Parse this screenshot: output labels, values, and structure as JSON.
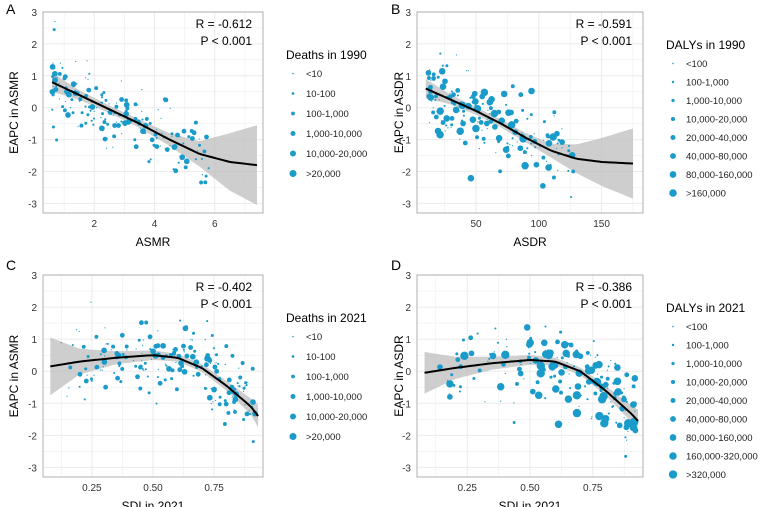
{
  "colors": {
    "point": "#1a9bc9",
    "curve": "#000000",
    "band": "#bdbdbd",
    "grid": "#ebebeb",
    "panel_border": "#9e9e9e"
  },
  "chart_data": [
    {
      "panel": "A",
      "type": "scatter",
      "xlabel": "ASMR",
      "ylabel": "EAPC in ASMR",
      "xlim": [
        0.3,
        7.6
      ],
      "ylim": [
        -3.3,
        3.0
      ],
      "xticks": [
        "2",
        "4",
        "6"
      ],
      "yticks": [
        "-3",
        "-2",
        "-1",
        "0",
        "1",
        "2",
        "3"
      ],
      "xtick_values": [
        2,
        4,
        6
      ],
      "ytick_values": [
        -3,
        -2,
        -1,
        0,
        1,
        2,
        3
      ],
      "annotation": {
        "r": "R = -0.612",
        "p": "P < 0.001"
      },
      "legend": {
        "title": "Deaths in 1990",
        "entries": [
          "<10",
          "10-100",
          "100-1,000",
          "1,000-10,000",
          "10,000-20,000",
          ">20,000"
        ]
      },
      "trend": {
        "x": [
          0.6,
          1.5,
          2.5,
          3.5,
          4.5,
          5.5,
          6.5,
          7.4
        ],
        "y": [
          0.8,
          0.4,
          -0.05,
          -0.5,
          -1.0,
          -1.45,
          -1.7,
          -1.8
        ]
      },
      "band_half_width": [
        0.3,
        0.15,
        0.12,
        0.13,
        0.2,
        0.4,
        0.9,
        1.25
      ],
      "points": {
        "n": 190,
        "seed": 11,
        "x_range": [
          0.6,
          5.8
        ],
        "x_skew": 1.5,
        "noise": 0.55,
        "max_size": 6
      }
    },
    {
      "panel": "B",
      "type": "scatter",
      "xlabel": "ASDR",
      "ylabel": "EAPC in ASDR",
      "xlim": [
        3,
        183
      ],
      "ylim": [
        -3.3,
        3.0
      ],
      "xticks": [
        "50",
        "100",
        "150"
      ],
      "yticks": [
        "-3",
        "-2",
        "-1",
        "0",
        "1",
        "2",
        "3"
      ],
      "xtick_values": [
        50,
        100,
        150
      ],
      "ytick_values": [
        -3,
        -2,
        -1,
        0,
        1,
        2,
        3
      ],
      "annotation": {
        "r": "R = -0.591",
        "p": "P < 0.001"
      },
      "legend": {
        "title": "DALYs in 1990",
        "entries": [
          "<100",
          "100-1,000",
          "1,000-10,000",
          "10,000-20,000",
          "20,000-40,000",
          "40,000-80,000",
          "80,000-160,000",
          ">160,000"
        ]
      },
      "trend": {
        "x": [
          10,
          30,
          50,
          70,
          90,
          110,
          130,
          150,
          175
        ],
        "y": [
          0.6,
          0.25,
          -0.1,
          -0.5,
          -0.95,
          -1.35,
          -1.6,
          -1.7,
          -1.75
        ]
      },
      "band_half_width": [
        0.3,
        0.15,
        0.12,
        0.12,
        0.15,
        0.22,
        0.45,
        0.75,
        1.1
      ],
      "points": {
        "n": 190,
        "seed": 23,
        "x_range": [
          12,
          128
        ],
        "x_skew": 1.3,
        "noise": 0.6,
        "max_size": 8
      }
    },
    {
      "panel": "C",
      "type": "scatter",
      "xlabel": "SDI in 2021",
      "ylabel": "EAPC in ASMR",
      "xlim": [
        0.05,
        0.95
      ],
      "ylim": [
        -3.3,
        3.0
      ],
      "xticks": [
        "0.25",
        "0.50",
        "0.75"
      ],
      "yticks": [
        "-3",
        "-2",
        "-1",
        "0",
        "1",
        "2",
        "3"
      ],
      "xtick_values": [
        0.25,
        0.5,
        0.75
      ],
      "ytick_values": [
        -3,
        -2,
        -1,
        0,
        1,
        2,
        3
      ],
      "annotation": {
        "r": "R = -0.402",
        "p": "P < 0.001"
      },
      "legend": {
        "title": "Deaths in 2021",
        "entries": [
          "<10",
          "10-100",
          "100-1,000",
          "1,000-10,000",
          "10,000-20,000",
          ">20,000"
        ]
      },
      "trend": {
        "x": [
          0.08,
          0.2,
          0.35,
          0.5,
          0.6,
          0.7,
          0.8,
          0.9,
          0.93
        ],
        "y": [
          0.15,
          0.3,
          0.42,
          0.5,
          0.42,
          0.1,
          -0.45,
          -1.1,
          -1.4
        ]
      },
      "band_half_width": [
        0.9,
        0.4,
        0.2,
        0.15,
        0.12,
        0.12,
        0.15,
        0.25,
        0.35
      ],
      "points": {
        "n": 200,
        "seed": 37,
        "x_range": [
          0.1,
          0.92
        ],
        "x_skew": 0.6,
        "noise": 0.6,
        "max_size": 6
      }
    },
    {
      "panel": "D",
      "type": "scatter",
      "xlabel": "SDI in 2021",
      "ylabel": "EAPC in ASDR",
      "xlim": [
        0.05,
        0.95
      ],
      "ylim": [
        -3.3,
        3.0
      ],
      "xticks": [
        "0.25",
        "0.50",
        "0.75"
      ],
      "yticks": [
        "-3",
        "-2",
        "-1",
        "0",
        "1",
        "2",
        "3"
      ],
      "xtick_values": [
        0.25,
        0.5,
        0.75
      ],
      "ytick_values": [
        -3,
        -2,
        -1,
        0,
        1,
        2,
        3
      ],
      "annotation": {
        "r": "R = -0.386",
        "p": "P < 0.001"
      },
      "legend": {
        "title": "DALYs in 2021",
        "entries": [
          "<100",
          "100-1,000",
          "1,000-10,000",
          "10,000-20,000",
          "20,000-40,000",
          "40,000-80,000",
          "80,000-160,000",
          "160,000-320,000",
          ">320,000"
        ]
      },
      "trend": {
        "x": [
          0.08,
          0.2,
          0.35,
          0.5,
          0.6,
          0.7,
          0.8,
          0.9,
          0.93
        ],
        "y": [
          -0.05,
          0.1,
          0.25,
          0.35,
          0.3,
          0.0,
          -0.6,
          -1.3,
          -1.55
        ]
      },
      "band_half_width": [
        0.65,
        0.35,
        0.2,
        0.15,
        0.12,
        0.12,
        0.15,
        0.25,
        0.35
      ],
      "points": {
        "n": 200,
        "seed": 51,
        "x_range": [
          0.1,
          0.92
        ],
        "x_skew": 0.6,
        "noise": 0.6,
        "max_size": 9
      }
    }
  ]
}
